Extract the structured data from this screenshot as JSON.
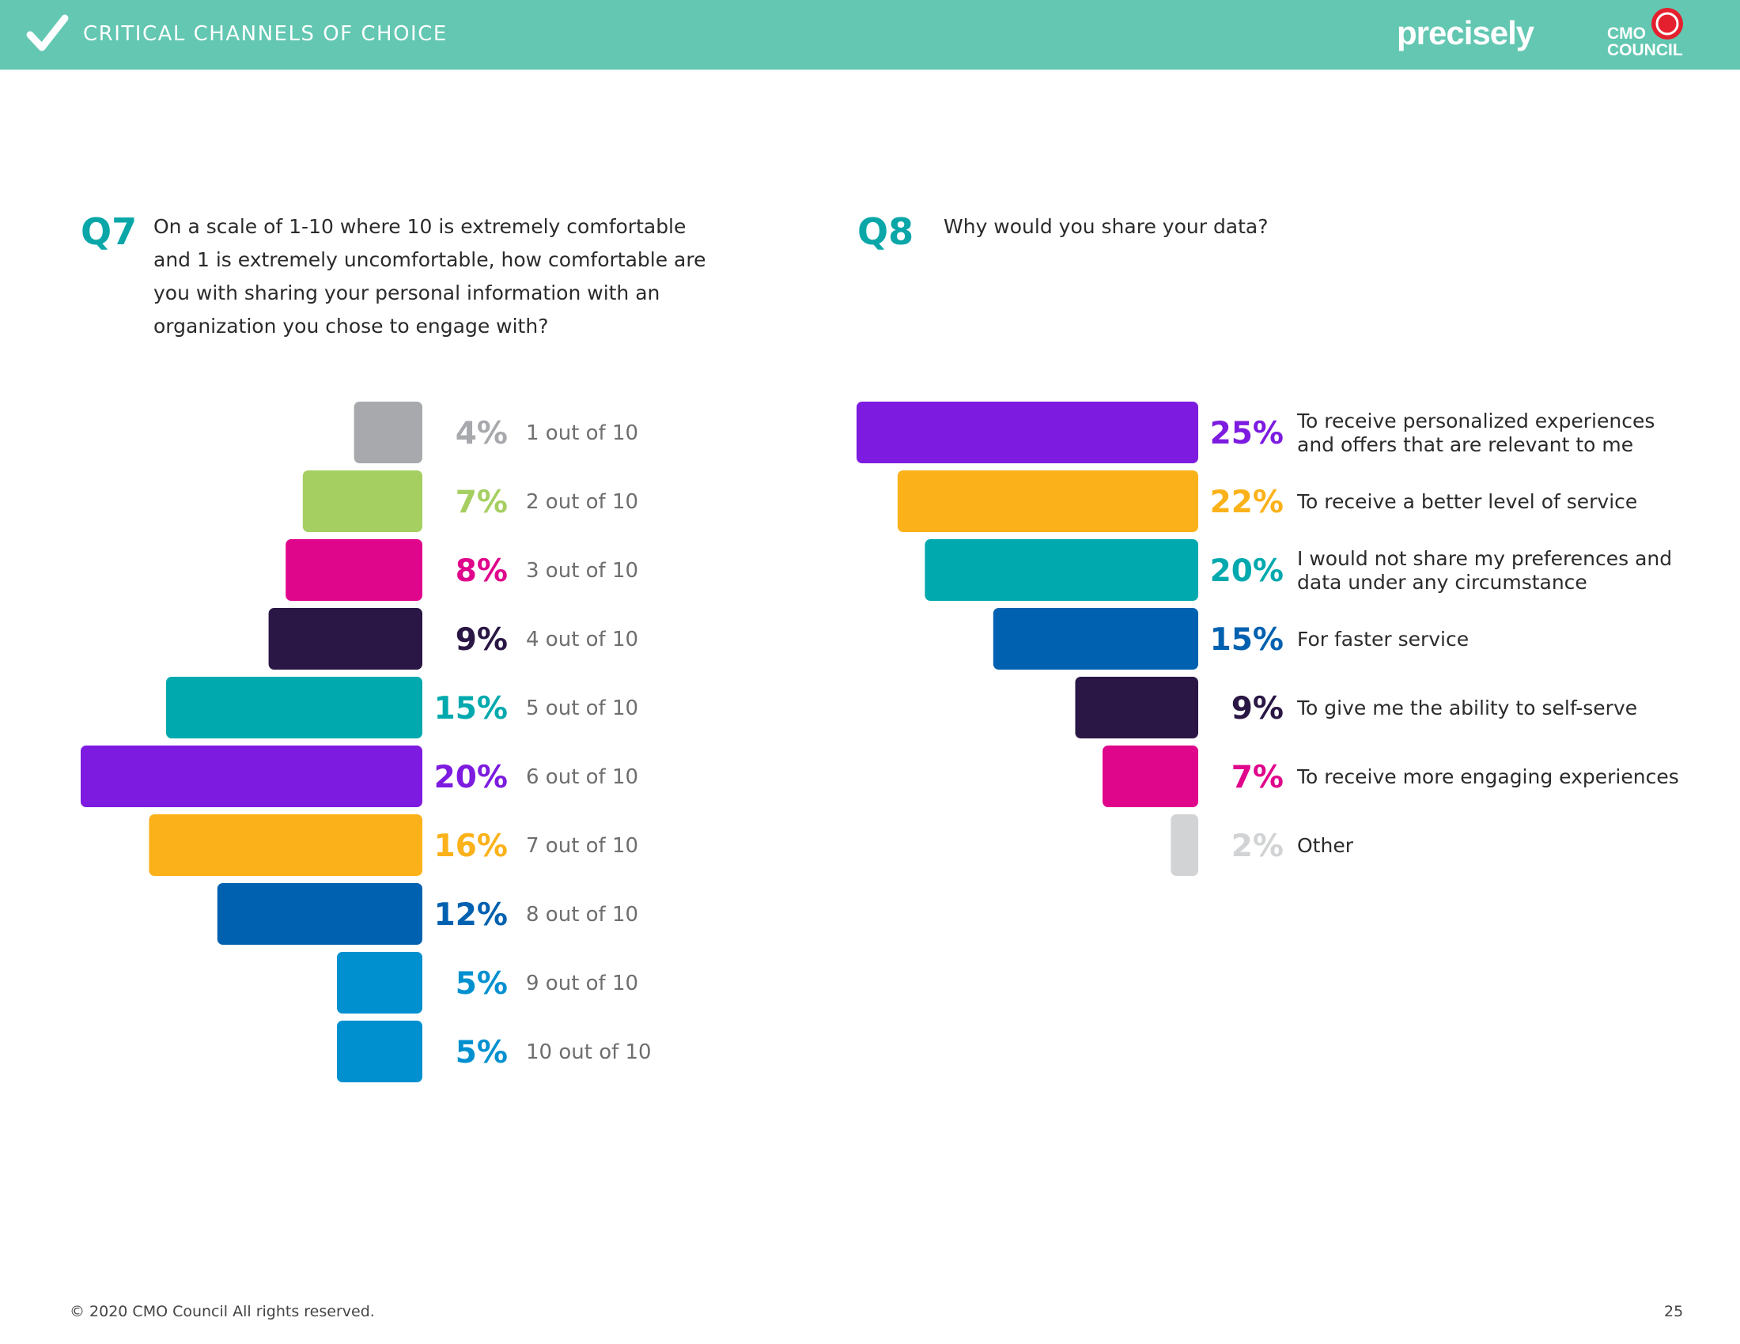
{
  "header": {
    "title": "CRITICAL CHANNELS OF CHOICE",
    "brand_precisely": "precisely",
    "brand_cmo_line1": "CMO",
    "brand_cmo_line2": "COUNCIL",
    "bg_color": "#63c7b2"
  },
  "q7": {
    "number": "Q7",
    "question": "On a scale of 1-10 where 10 is extremely comfortable and 1 is extremely uncomfortable, how comfortable are you with sharing your personal information with an organization you chose to engage with?"
  },
  "q8": {
    "number": "Q8",
    "question": "Why would you share your data?"
  },
  "chart_data": [
    {
      "type": "bar",
      "orientation": "horizontal",
      "categories": [
        "1 out of 10",
        "2 out of 10",
        "3 out of 10",
        "4 out of 10",
        "5 out of 10",
        "6 out of 10",
        "7 out of 10",
        "8 out of 10",
        "9 out of 10",
        "10 out of 10"
      ],
      "values": [
        4,
        7,
        8,
        9,
        15,
        20,
        16,
        12,
        5,
        5
      ],
      "value_labels": [
        "4%",
        "7%",
        "8%",
        "9%",
        "15%",
        "20%",
        "16%",
        "12%",
        "5%",
        "5%"
      ],
      "colors": [
        "#a7a9ac",
        "#a6cf62",
        "#e0068c",
        "#2a1745",
        "#00a9ae",
        "#7d1ce0",
        "#fbb21a",
        "#0061b0",
        "#0090d0",
        "#0090d0"
      ],
      "unit": "%"
    },
    {
      "type": "bar",
      "orientation": "horizontal",
      "categories": [
        [
          "To receive personalized experiences",
          "and offers that are relevant to me"
        ],
        [
          "To receive a better level of service"
        ],
        [
          "I would not share my preferences and",
          "data under any circumstance"
        ],
        [
          "For faster service"
        ],
        [
          "To give me the ability to self-serve"
        ],
        [
          "To receive more engaging experiences"
        ],
        [
          "Other"
        ]
      ],
      "values": [
        25,
        22,
        20,
        15,
        9,
        7,
        2
      ],
      "value_labels": [
        "25%",
        "22%",
        "20%",
        "15%",
        "9%",
        "7%",
        "2%"
      ],
      "colors": [
        "#7d1ce0",
        "#fbb21a",
        "#00a9ae",
        "#0061b0",
        "#2a1745",
        "#e0068c",
        "#d1d3d4"
      ],
      "unit": "%"
    }
  ],
  "footer": {
    "copyright": "© 2020 CMO Council  All rights reserved.",
    "page_number": "25"
  }
}
